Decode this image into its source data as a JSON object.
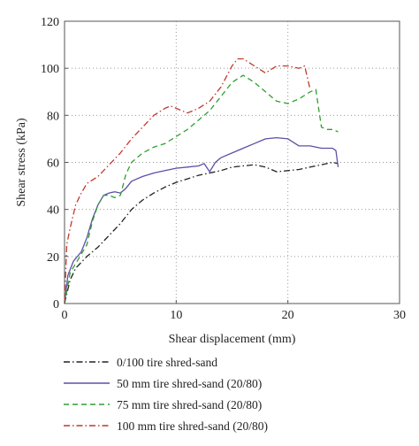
{
  "chart_data": {
    "type": "line",
    "xlabel": "Shear displacement (mm)",
    "ylabel": "Shear stress (kPa)",
    "xlim": [
      0,
      30
    ],
    "ylim": [
      0,
      120
    ],
    "x_ticks": [
      0,
      10,
      20,
      30
    ],
    "y_ticks": [
      0,
      20,
      40,
      60,
      80,
      100,
      120
    ],
    "grid": "dotted",
    "legend_position": "below",
    "series": [
      {
        "name": "0/100 tire shred-sand",
        "color": "#222222",
        "dash": "dash-dot",
        "x": [
          0,
          0.5,
          1,
          2,
          3,
          4,
          5,
          6,
          7,
          8,
          9,
          10,
          11,
          12,
          13,
          14,
          15,
          16,
          17,
          18,
          19,
          20,
          21,
          22,
          23,
          24,
          24.5
        ],
        "y": [
          0,
          10,
          15,
          20,
          24,
          29,
          34,
          40,
          44,
          47,
          49.5,
          51.5,
          53,
          54.5,
          55.5,
          56.5,
          58,
          58.5,
          59,
          58,
          56,
          56.5,
          57,
          58,
          59,
          60,
          59.5
        ]
      },
      {
        "name": "50 mm tire shred-sand (20/80)",
        "color": "#5a50a6",
        "dash": "solid",
        "x": [
          0,
          0.3,
          0.8,
          1.5,
          2,
          2.5,
          3,
          3.5,
          4,
          4.5,
          5,
          5.5,
          6,
          7,
          8,
          9,
          10,
          11,
          12,
          12.5,
          13,
          13.5,
          14,
          15,
          16,
          17,
          18,
          19,
          20,
          21,
          22,
          23,
          24,
          24.3,
          24.5
        ],
        "y": [
          0,
          12,
          18,
          22,
          28,
          36,
          42,
          46,
          47,
          47.5,
          47,
          49,
          52,
          54,
          55.5,
          56.5,
          57.5,
          58,
          58.5,
          59.5,
          56,
          60,
          62,
          64,
          66,
          68,
          70,
          70.5,
          70,
          67,
          67,
          66,
          66,
          65,
          58
        ]
      },
      {
        "name": "75 mm tire shred-sand (20/80)",
        "color": "#2ea02e",
        "dash": "dashed",
        "x": [
          0,
          0.5,
          1,
          1.5,
          2,
          2.5,
          3,
          3.5,
          4,
          4.5,
          5,
          5.5,
          6,
          7,
          8,
          9,
          10,
          11,
          12,
          13,
          14,
          15,
          16,
          17,
          18,
          19,
          20,
          21,
          22,
          22.5,
          23,
          23.5,
          24,
          24.5
        ],
        "y": [
          0,
          13,
          17,
          21,
          25,
          35,
          42,
          46,
          46,
          45,
          46,
          55,
          60,
          64,
          66.5,
          68,
          71,
          74,
          78,
          82,
          88,
          94,
          97,
          94,
          90,
          86,
          85,
          87,
          90,
          91,
          75,
          74,
          74,
          73
        ]
      },
      {
        "name": "100 mm tire shred-sand (20/80)",
        "color": "#c0392b",
        "dash": "dash-dot",
        "x": [
          0,
          0.2,
          0.5,
          1,
          1.5,
          2,
          3,
          4,
          5,
          6,
          7,
          8,
          9,
          9.5,
          10,
          11,
          12,
          13,
          14,
          15,
          15.5,
          16,
          17,
          18,
          19,
          20,
          21,
          21.5,
          22
        ],
        "y": [
          0,
          25,
          32,
          42,
          47,
          51,
          54,
          59,
          64,
          70,
          75,
          80,
          83,
          84,
          83,
          81,
          83,
          86,
          92,
          101,
          104,
          104,
          101,
          98,
          101,
          101,
          100,
          101,
          91
        ]
      }
    ]
  }
}
